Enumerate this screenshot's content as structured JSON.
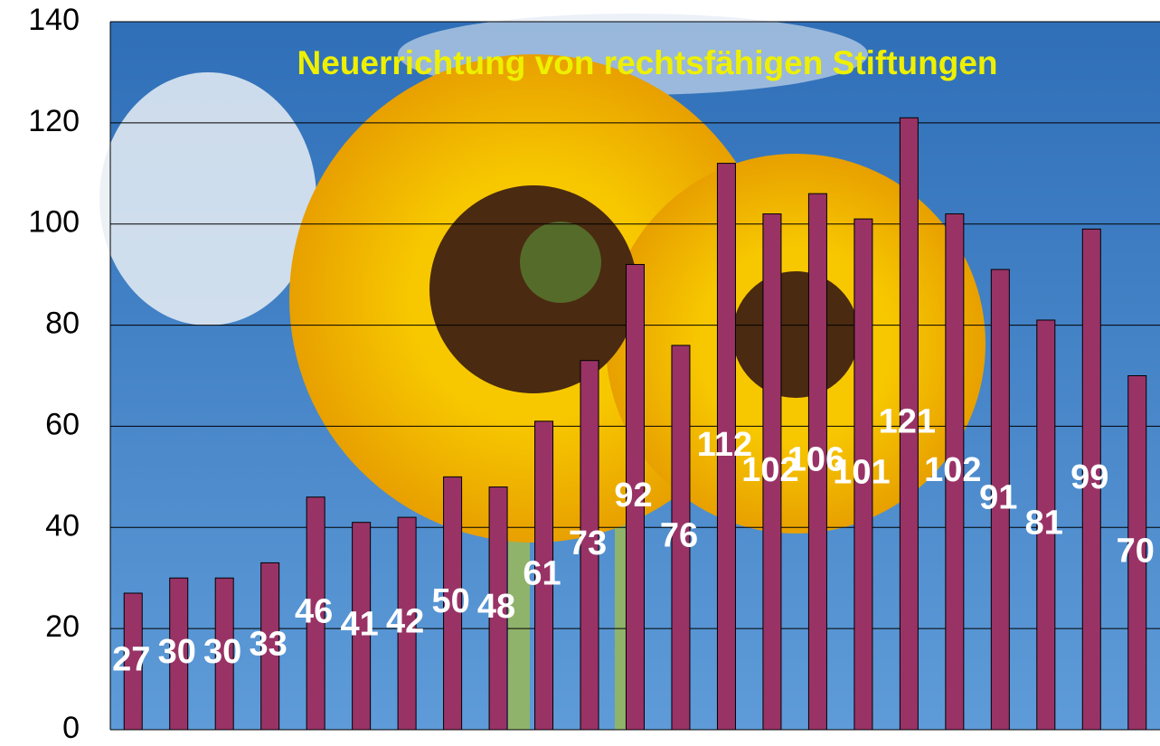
{
  "chart_data": {
    "type": "bar",
    "title": "Neuerrichtung von rechtsfähigen Stiftungen",
    "values": [
      27,
      30,
      30,
      33,
      46,
      41,
      42,
      50,
      48,
      61,
      73,
      92,
      76,
      112,
      102,
      106,
      101,
      121,
      102,
      91,
      81,
      99,
      70
    ],
    "color": "#993366",
    "ylim": [
      0,
      140
    ],
    "yticks": [
      0,
      20,
      40,
      60,
      80,
      100,
      120,
      140
    ],
    "grid": true
  }
}
